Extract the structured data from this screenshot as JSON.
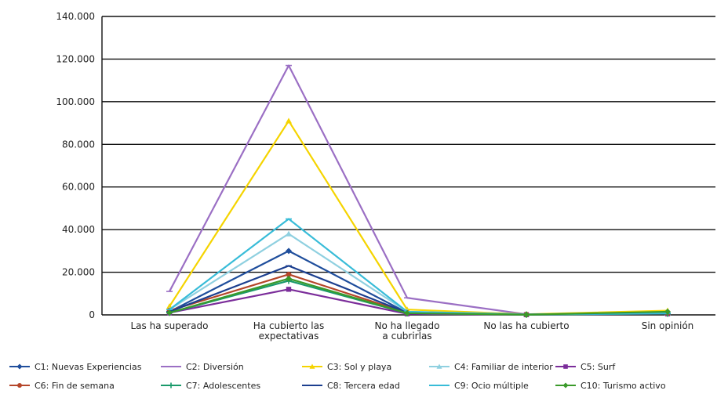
{
  "chart_data": {
    "type": "line",
    "title": "",
    "xlabel": "",
    "ylabel": "",
    "ylim": [
      0,
      140000
    ],
    "yticks": [
      0,
      20000,
      40000,
      60000,
      80000,
      100000,
      120000,
      140000
    ],
    "ytick_labels": [
      "0",
      "20.000",
      "40.000",
      "60.000",
      "80.000",
      "100.000",
      "120.000",
      "140.000"
    ],
    "grid": "horizontal",
    "legend_position": "bottom",
    "categories": [
      [
        "Las ha superado"
      ],
      [
        "Ha cubierto las",
        "expectativas"
      ],
      [
        "No ha llegado",
        "a cubrirlas"
      ],
      [
        "No las ha cubierto"
      ],
      [
        "Sin opinión"
      ]
    ],
    "series": [
      {
        "name": "C1: Nuevas Experiencias",
        "color": "#1f4e9c",
        "marker": "diamond",
        "values": [
          1500,
          30000,
          1000,
          200,
          1000
        ]
      },
      {
        "name": "C2: Diversión",
        "color": "#9b6fc4",
        "marker": "dash",
        "values": [
          11000,
          117000,
          8000,
          300,
          800
        ]
      },
      {
        "name": "C3: Sol y playa",
        "color": "#f5d400",
        "marker": "triangle",
        "values": [
          4000,
          91000,
          2500,
          300,
          2000
        ]
      },
      {
        "name": "C4: Familiar de interior",
        "color": "#8fd0e0",
        "marker": "triangle",
        "values": [
          2500,
          38000,
          1500,
          200,
          1000
        ]
      },
      {
        "name": "C5: Surf",
        "color": "#7b2d9a",
        "marker": "square",
        "values": [
          1000,
          12000,
          500,
          100,
          500
        ]
      },
      {
        "name": "C6: Fin de semana",
        "color": "#b5462a",
        "marker": "circle",
        "values": [
          2000,
          19000,
          1000,
          200,
          700
        ]
      },
      {
        "name": "C7: Adolescentes",
        "color": "#1a9a6a",
        "marker": "plus",
        "values": [
          1000,
          16000,
          800,
          100,
          600
        ]
      },
      {
        "name": "C8: Tercera edad",
        "color": "#1c3f8f",
        "marker": "dash",
        "values": [
          1500,
          23000,
          1000,
          200,
          800
        ]
      },
      {
        "name": "C9: Ocio múltiple",
        "color": "#38bcd8",
        "marker": "dash",
        "values": [
          2500,
          45000,
          1500,
          200,
          800
        ]
      },
      {
        "name": "C10: Turismo activo",
        "color": "#3a9a2a",
        "marker": "diamond",
        "values": [
          1000,
          17000,
          800,
          100,
          1500
        ]
      }
    ]
  }
}
